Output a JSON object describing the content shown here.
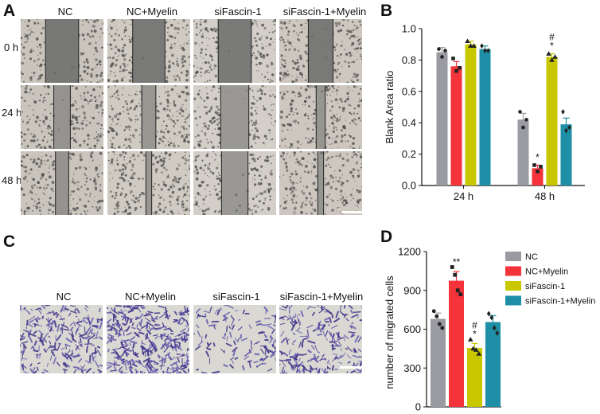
{
  "panels": {
    "A": "A",
    "B": "B",
    "C": "C",
    "D": "D"
  },
  "wound_panel": {
    "columns": [
      "NC",
      "NC+Myelin",
      "siFascin-1",
      "siFascin-1+Myelin"
    ],
    "rows": [
      "0 h",
      "24 h",
      "48 h"
    ],
    "gap_fraction": [
      [
        0.4,
        0.39,
        0.4,
        0.3
      ],
      [
        0.2,
        0.17,
        0.34,
        0.11
      ],
      [
        0.16,
        0.07,
        0.32,
        0.07
      ]
    ]
  },
  "transwell_panel": {
    "columns": [
      "NC",
      "NC+Myelin",
      "siFascin-1",
      "siFascin-1+Myelin"
    ],
    "density": [
      0.55,
      0.85,
      0.28,
      0.5
    ]
  },
  "colors": {
    "NC": "#9a9aa2",
    "NC+Myelin": "#f5333a",
    "siFascin-1": "#c9c800",
    "siFascin-1+Myelin": "#1e8fa6"
  },
  "chart_data": [
    {
      "type": "bar",
      "ylabel": "Blank Area ratio",
      "xlabel": "",
      "categories": [
        "24 h",
        "48 h"
      ],
      "ylim": [
        0.0,
        1.0
      ],
      "yticks": [
        "0.0",
        "0.2",
        "0.4",
        "0.6",
        "0.8",
        "1.0"
      ],
      "series": [
        {
          "name": "NC",
          "values": [
            0.85,
            0.42
          ],
          "err": [
            0.03,
            0.04
          ],
          "points": [
            [
              0.87,
              0.82,
              0.86
            ],
            [
              0.47,
              0.37,
              0.42
            ]
          ],
          "marker": "circle"
        },
        {
          "name": "NC+Myelin",
          "values": [
            0.76,
            0.11
          ],
          "err": [
            0.03,
            0.02
          ],
          "points": [
            [
              0.81,
              0.73,
              0.75
            ],
            [
              0.13,
              0.09,
              0.12
            ]
          ],
          "marker": "square"
        },
        {
          "name": "siFascin-1",
          "values": [
            0.9,
            0.82
          ],
          "err": [
            0.02,
            0.02
          ],
          "points": [
            [
              0.92,
              0.89,
              0.89
            ],
            [
              0.84,
              0.8,
              0.82
            ]
          ],
          "marker": "triangle"
        },
        {
          "name": "siFascin-1+Myelin",
          "values": [
            0.87,
            0.39
          ],
          "err": [
            0.02,
            0.04
          ],
          "points": [
            [
              0.89,
              0.86,
              0.86
            ],
            [
              0.47,
              0.35,
              0.37
            ]
          ],
          "marker": "diamond"
        }
      ],
      "annotations": [
        {
          "category": 1,
          "series": 1,
          "text": "*"
        },
        {
          "category": 1,
          "series": 2,
          "text": "*"
        },
        {
          "category": 1,
          "series": 2,
          "text": "#"
        }
      ]
    },
    {
      "type": "bar",
      "ylabel": "number of migrated cells",
      "xlabel": "",
      "categories": [
        "NC",
        "NC+Myelin",
        "siFascin-1",
        "siFascin-1+Myelin"
      ],
      "ylim": [
        0,
        1200
      ],
      "yticks": [
        "0",
        "300",
        "600",
        "900",
        "1200"
      ],
      "values": [
        680,
        975,
        455,
        655
      ],
      "err": [
        45,
        70,
        35,
        50
      ],
      "points": [
        [
          740,
          700,
          640,
          610
        ],
        [
          1080,
          1020,
          900,
          870
        ],
        [
          520,
          450,
          440,
          410
        ],
        [
          720,
          690,
          610,
          570
        ]
      ],
      "markers": [
        "circle",
        "square",
        "triangle",
        "diamond"
      ],
      "annotations": [
        {
          "index": 1,
          "text": "**"
        },
        {
          "index": 2,
          "text": "*"
        },
        {
          "index": 2,
          "text": "#"
        }
      ],
      "legend": {
        "placement": "right",
        "entries": [
          "NC",
          "NC+Myelin",
          "siFascin-1",
          "siFascin-1+Myelin"
        ]
      }
    }
  ]
}
